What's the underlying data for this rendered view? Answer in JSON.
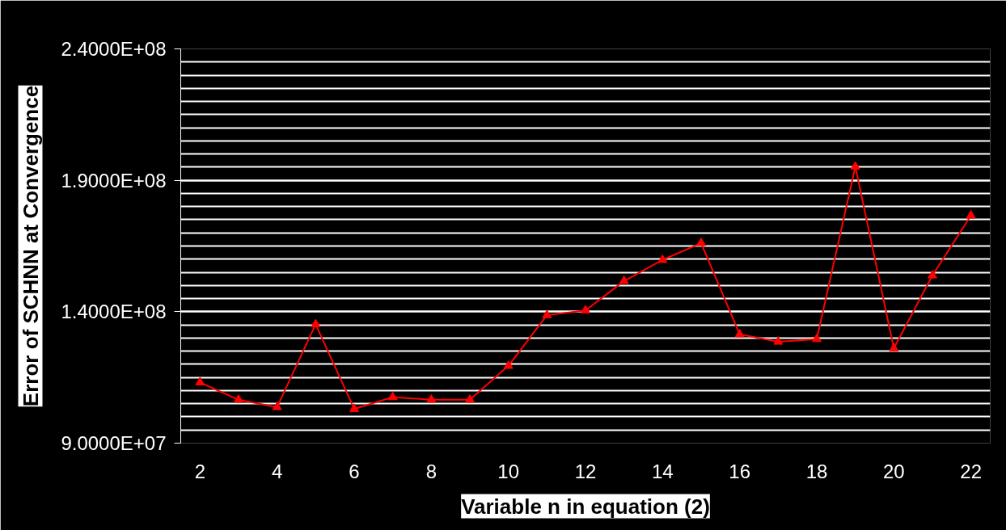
{
  "chart_data": {
    "type": "line",
    "xlabel": "Variable n in equation (2)",
    "ylabel": "Error of SCHNN at Convergence",
    "x": [
      2,
      3,
      4,
      5,
      6,
      7,
      8,
      9,
      10,
      11,
      12,
      13,
      14,
      15,
      16,
      17,
      18,
      19,
      20,
      21,
      22
    ],
    "series": [
      {
        "color": "#ff0000",
        "values": [
          113100000.0,
          106500000.0,
          103700000.0,
          135200000.0,
          103000000.0,
          107500000.0,
          106500000.0,
          106500000.0,
          119400000.0,
          138700000.0,
          140500000.0,
          151700000.0,
          159700000.0,
          166100000.0,
          131400000.0,
          128600000.0,
          129600000.0,
          195200000.0,
          126100000.0,
          153800000.0,
          176600000.0
        ]
      }
    ],
    "xlim": [
      1.5,
      22.5
    ],
    "xticks": [
      2,
      4,
      6,
      8,
      10,
      12,
      14,
      16,
      18,
      20,
      22
    ],
    "ylim": [
      90000000.0,
      240000000.0
    ],
    "yticks": [
      {
        "value": 90000000.0,
        "label": "9.0000E+07"
      },
      {
        "value": 140000000.0,
        "label": "1.4000E+08"
      },
      {
        "value": 190000000.0,
        "label": "1.9000E+08"
      },
      {
        "value": 240000000.0,
        "label": "2.4000E+08"
      }
    ],
    "grid": "y",
    "marker": "triangle",
    "line_style": "solid"
  }
}
